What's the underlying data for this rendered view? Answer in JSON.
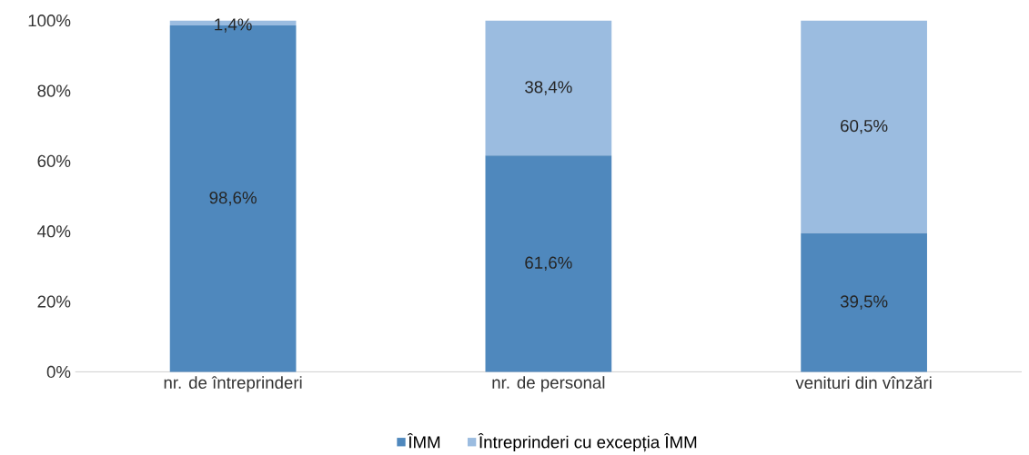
{
  "chart_data": {
    "type": "bar",
    "stacked": true,
    "categories": [
      "nr. de întreprinderi",
      "nr. de personal",
      "venituri din vînzări"
    ],
    "series": [
      {
        "name": "ÎMM",
        "color": "#4f88bd",
        "values": [
          98.6,
          61.6,
          39.5
        ],
        "value_labels": [
          "98,6%",
          "61,6%",
          "39,5%"
        ]
      },
      {
        "name": "Întreprinderi cu excepția ÎMM",
        "color": "#9bbce0",
        "values": [
          1.4,
          38.4,
          60.5
        ],
        "value_labels": [
          "1,4%",
          "38,4%",
          "60,5%"
        ]
      }
    ],
    "ylim": [
      0,
      100
    ],
    "yticks": [
      {
        "value": 0,
        "label": "0%"
      },
      {
        "value": 20,
        "label": "20%"
      },
      {
        "value": 40,
        "label": "40%"
      },
      {
        "value": 60,
        "label": "60%"
      },
      {
        "value": 80,
        "label": "80%"
      },
      {
        "value": 100,
        "label": "100%"
      }
    ],
    "grid": false,
    "legend": "bottom"
  }
}
